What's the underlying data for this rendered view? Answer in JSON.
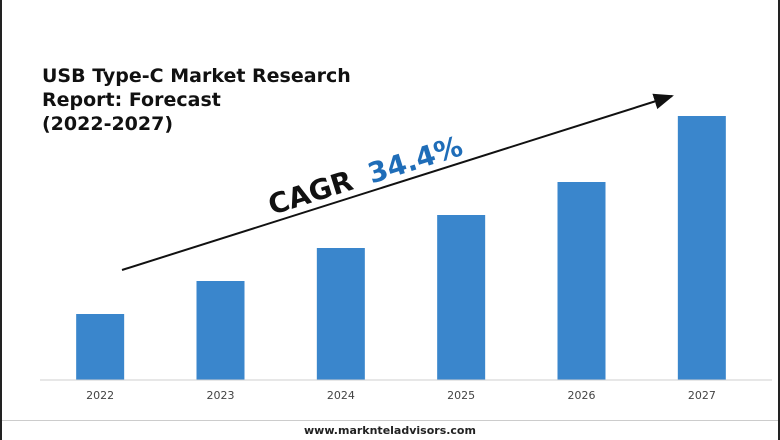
{
  "colors": {
    "bar": "#3a86cc",
    "cagr_value": "#1f6db8",
    "axis": "#cfcfcf",
    "text": "#111111"
  },
  "header": {
    "title_lines": [
      "USB Type-C Market Research",
      "Report: Forecast",
      "(2022-2027)"
    ]
  },
  "annotation": {
    "label": "CAGR",
    "value": "34.4%"
  },
  "footer": {
    "website": "www.marknteladvisors.com"
  },
  "chart_data": {
    "type": "bar",
    "title": "USB Type-C Market Research Report: Forecast (2022-2027)",
    "categories": [
      "2022",
      "2023",
      "2024",
      "2025",
      "2026",
      "2027"
    ],
    "values": [
      20,
      30,
      40,
      50,
      60,
      80
    ],
    "ylim": [
      0,
      80
    ],
    "xlabel": "",
    "ylabel": "",
    "grid": false,
    "annotation": "CAGR 34.4%"
  }
}
